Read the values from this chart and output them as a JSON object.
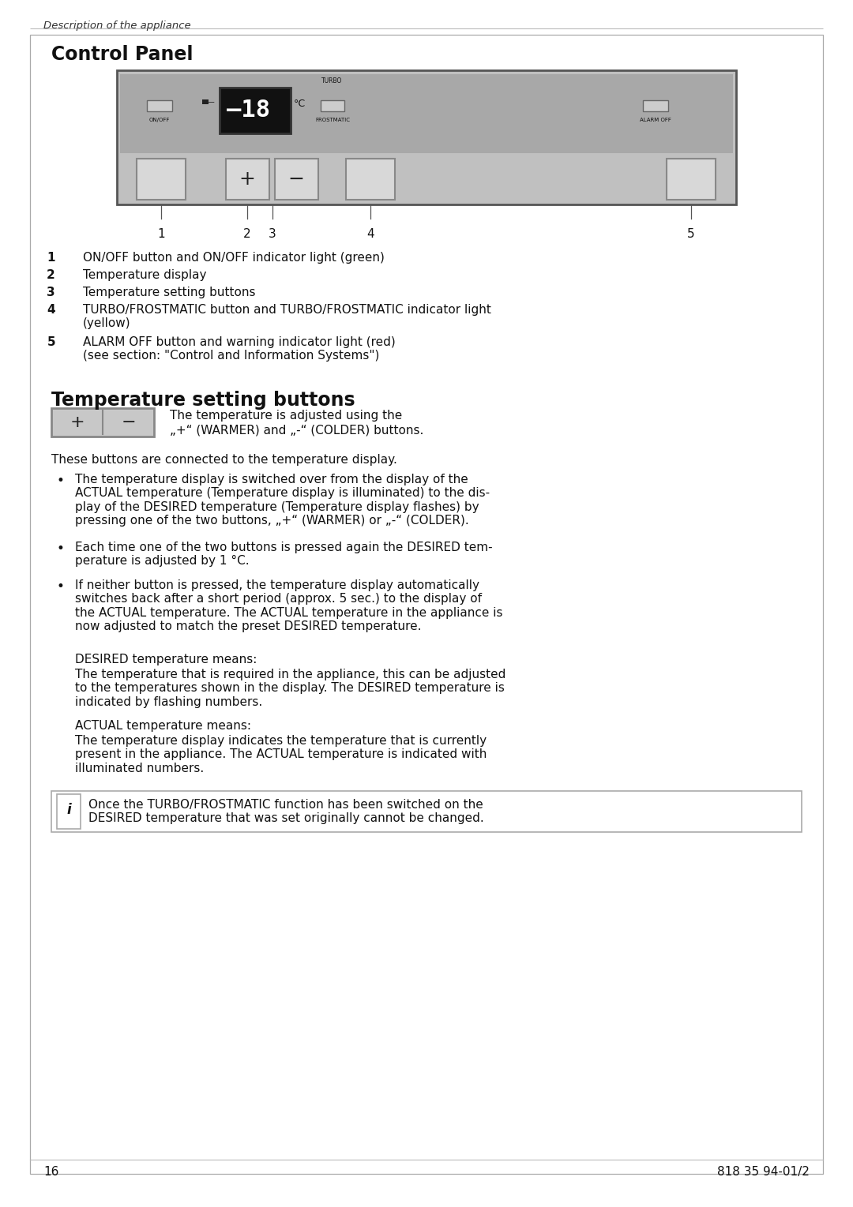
{
  "page_bg": "#ffffff",
  "header_text": "Description of the appliance",
  "section1_title": "Control Panel",
  "section2_title": "Temperature setting buttons",
  "numbered_items": [
    [
      "1",
      "ON/OFF button and ON/OFF indicator light (green)"
    ],
    [
      "2",
      "Temperature display"
    ],
    [
      "3",
      "Temperature setting buttons"
    ],
    [
      "4",
      "TURBO/FROSTMATIC button and TURBO/FROSTMATIC indicator light\n(yellow)"
    ],
    [
      "5",
      "ALARM OFF button and warning indicator light (red)\n(see section: \"Control and Information Systems\")"
    ]
  ],
  "temp_button_label1": "The temperature is adjusted using the",
  "temp_button_label2": "„+“ (WARMER) and „-“ (COLDER) buttons.",
  "these_buttons_text": "These buttons are connected to the temperature display.",
  "bullet_items": [
    "The temperature display is switched over from the display of the\nACTUAL temperature (Temperature display is illuminated) to the dis-\nplay of the DESIRED temperature (Temperature display flashes) by\npressing one of the two buttons, „+“ (WARMER) or „-“ (COLDER).",
    "Each time one of the two buttons is pressed again the DESIRED tem-\nperature is adjusted by 1 °C.",
    "If neither button is pressed, the temperature display automatically\nswitches back after a short period (approx. 5 sec.) to the display of\nthe ACTUAL temperature. The ACTUAL temperature in the appliance is\nnow adjusted to match the preset DESIRED temperature."
  ],
  "desired_title": "DESIRED temperature means:",
  "desired_body": "The temperature that is required in the appliance, this can be adjusted\nto the temperatures shown in the display. The DESIRED temperature is\nindicated by flashing numbers.",
  "actual_title": "ACTUAL temperature means:",
  "actual_body": "The temperature display indicates the temperature that is currently\npresent in the appliance. The ACTUAL temperature is indicated with\nilluminated numbers.",
  "info_text": "Once the TURBO/FROSTMATIC function has been switched on the\nDESIRED temperature that was set originally cannot be changed.",
  "page_number": "16",
  "doc_number": "818 35 94-01/2",
  "panel_bg": "#c0c0c0",
  "panel_dark_bg": "#a8a8a8",
  "panel_display_bg": "#111111",
  "button_bg": "#d8d8d8",
  "button_border": "#888888",
  "indicator_bg": "#cccccc",
  "indicator_border": "#777777"
}
